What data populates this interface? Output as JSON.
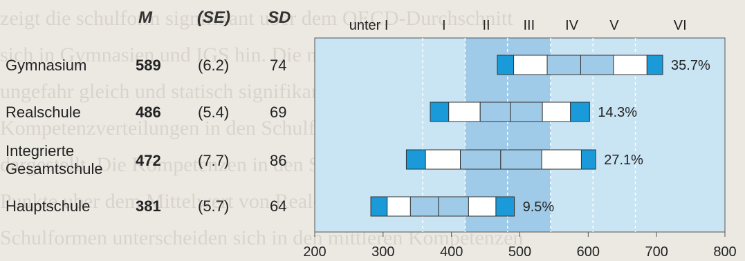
{
  "columns": {
    "m": "M",
    "se": "(SE)",
    "sd": "SD"
  },
  "rows": [
    {
      "label_lines": [
        "Gymnasium"
      ],
      "m": "589",
      "se": "(6.2)",
      "sd": "74"
    },
    {
      "label_lines": [
        "Realschule"
      ],
      "m": "486",
      "se": "(5.4)",
      "sd": "69"
    },
    {
      "label_lines": [
        "Integrierte",
        "Gesamtschule"
      ],
      "m": "472",
      "se": "(7.7)",
      "sd": "86"
    },
    {
      "label_lines": [
        "Hauptschule"
      ],
      "m": "381",
      "se": "(5.7)",
      "sd": "64"
    }
  ],
  "colors": {
    "bar_blue": "#1a9ad8",
    "band_light": "#c9e4f3",
    "band_mid": "#9fcbe9",
    "white": "#ffffff",
    "axis": "#555555",
    "background": "#ece9e3"
  },
  "chart_data": {
    "type": "boxplot",
    "x_axis": {
      "min": 200,
      "max": 800,
      "ticks": [
        200,
        300,
        400,
        500,
        600,
        700,
        800
      ]
    },
    "levels": {
      "labels": [
        "unter I",
        "I",
        "II",
        "III",
        "IV",
        "V",
        "VI"
      ],
      "bounds": [
        358,
        420,
        482,
        545,
        607,
        669
      ]
    },
    "series": [
      {
        "name": "Gymnasium",
        "mean": 589,
        "percentiles": [
          467,
          491,
          540,
          589,
          637,
          686,
          709
        ],
        "annotation": "35.7%"
      },
      {
        "name": "Realschule",
        "mean": 486,
        "percentiles": [
          369,
          396,
          442,
          486,
          533,
          574,
          602
        ],
        "annotation": "14.3%"
      },
      {
        "name": "Integrierte Gesamtschule",
        "mean": 472,
        "percentiles": [
          334,
          362,
          413,
          472,
          532,
          590,
          611
        ],
        "annotation": "27.1%"
      },
      {
        "name": "Hauptschule",
        "mean": 381,
        "percentiles": [
          282,
          306,
          340,
          381,
          425,
          465,
          492
        ],
        "annotation": "9.5%"
      }
    ]
  }
}
